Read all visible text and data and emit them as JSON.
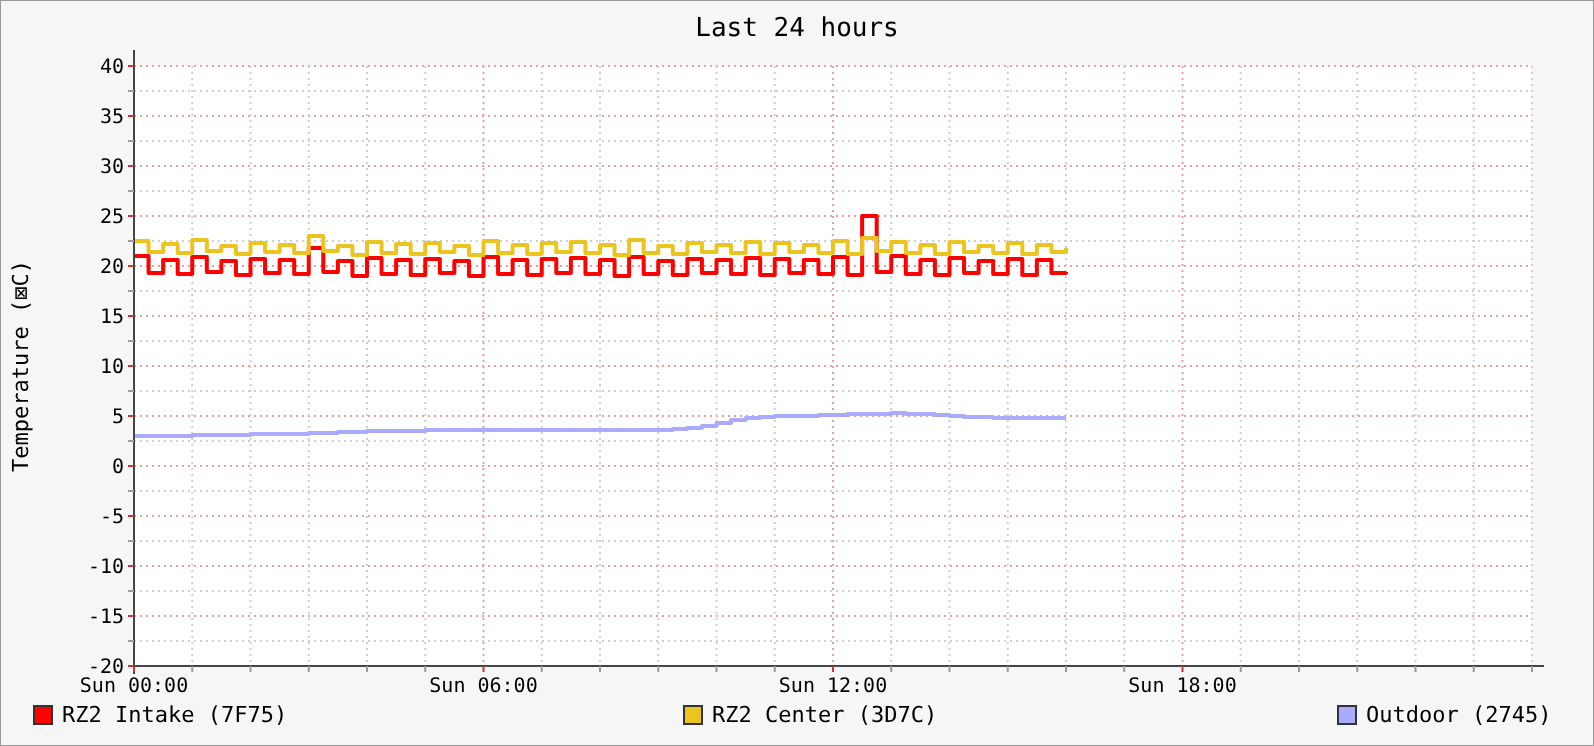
{
  "chart_data": {
    "type": "step",
    "title": "Last 24 hours",
    "ylabel": "Temperature (⊠C)",
    "categories": [
      "Sun 00:00",
      null,
      null,
      null,
      null,
      null,
      null,
      null,
      null,
      null,
      null,
      null,
      null,
      null,
      null,
      null,
      null,
      null,
      null,
      null,
      null,
      null,
      null,
      null,
      "Sun 06:00",
      null,
      null,
      null,
      null,
      null,
      null,
      null,
      null,
      null,
      null,
      null,
      null,
      null,
      null,
      null,
      null,
      null,
      null,
      null,
      null,
      null,
      null,
      null,
      "Sun 12:00",
      null,
      null,
      null,
      null,
      null,
      null,
      null,
      null,
      null,
      null,
      null,
      null,
      null,
      null,
      null,
      null,
      null,
      null,
      null,
      null,
      null,
      null,
      null,
      "Sun 18:00",
      null,
      null,
      null,
      null,
      null,
      null,
      null,
      null,
      null,
      null,
      null,
      null,
      null,
      null,
      null,
      null,
      null,
      null,
      null,
      null,
      null,
      null,
      null,
      null
    ],
    "series": [
      {
        "name": "RZ2 Intake (7F75)",
        "color": "#ff0000",
        "values": [
          21.0,
          19.3,
          20.6,
          19.2,
          20.9,
          19.4,
          20.5,
          19.1,
          20.7,
          19.3,
          20.6,
          19.2,
          21.8,
          19.4,
          20.5,
          19.0,
          20.8,
          19.2,
          20.6,
          19.1,
          20.7,
          19.3,
          20.5,
          19.0,
          20.9,
          19.2,
          20.6,
          19.1,
          20.7,
          19.3,
          20.8,
          19.2,
          20.6,
          19.0,
          20.9,
          19.2,
          20.5,
          19.1,
          20.7,
          19.3,
          20.6,
          19.2,
          20.8,
          19.1,
          20.7,
          19.3,
          20.6,
          19.2,
          20.9,
          19.1,
          25.0,
          19.4,
          21.0,
          19.2,
          20.6,
          19.1,
          20.8,
          19.3,
          20.5,
          19.2,
          20.7,
          19.1,
          20.6,
          19.3,
          19.4,
          null,
          null,
          null,
          null,
          null,
          null,
          null,
          null,
          null,
          null,
          null,
          null,
          null,
          null,
          null,
          null,
          null,
          null,
          null,
          null,
          null,
          null,
          null,
          null,
          null,
          null,
          null,
          null,
          null,
          null,
          null,
          null
        ]
      },
      {
        "name": "RZ2 Center (3D7C)",
        "color": "#ecc41f",
        "values": [
          22.5,
          21.4,
          22.2,
          21.3,
          22.6,
          21.5,
          22.0,
          21.2,
          22.3,
          21.4,
          22.1,
          21.3,
          23.0,
          21.5,
          22.0,
          21.1,
          22.4,
          21.3,
          22.2,
          21.2,
          22.3,
          21.4,
          22.0,
          21.1,
          22.5,
          21.3,
          22.1,
          21.2,
          22.3,
          21.4,
          22.4,
          21.3,
          22.1,
          21.1,
          22.6,
          21.3,
          22.0,
          21.2,
          22.3,
          21.4,
          22.1,
          21.3,
          22.4,
          21.2,
          22.3,
          21.4,
          22.1,
          21.3,
          22.5,
          21.2,
          22.8,
          21.5,
          22.4,
          21.3,
          22.1,
          21.2,
          22.4,
          21.4,
          22.0,
          21.3,
          22.3,
          21.2,
          22.1,
          21.4,
          21.8,
          null,
          null,
          null,
          null,
          null,
          null,
          null,
          null,
          null,
          null,
          null,
          null,
          null,
          null,
          null,
          null,
          null,
          null,
          null,
          null,
          null,
          null,
          null,
          null,
          null,
          null,
          null,
          null,
          null,
          null,
          null,
          null
        ]
      },
      {
        "name": "Outdoor (2745)",
        "color": "#aaaaff",
        "values": [
          3.0,
          3.0,
          3.0,
          3.0,
          3.1,
          3.1,
          3.1,
          3.1,
          3.2,
          3.2,
          3.2,
          3.2,
          3.3,
          3.3,
          3.4,
          3.4,
          3.5,
          3.5,
          3.5,
          3.5,
          3.6,
          3.6,
          3.6,
          3.6,
          3.6,
          3.6,
          3.6,
          3.6,
          3.6,
          3.6,
          3.6,
          3.6,
          3.6,
          3.6,
          3.6,
          3.6,
          3.6,
          3.7,
          3.8,
          4.0,
          4.3,
          4.6,
          4.8,
          4.9,
          5.0,
          5.0,
          5.0,
          5.1,
          5.1,
          5.2,
          5.2,
          5.2,
          5.3,
          5.2,
          5.2,
          5.1,
          5.0,
          4.9,
          4.9,
          4.8,
          4.8,
          4.8,
          4.8,
          4.8,
          4.8,
          null,
          null,
          null,
          null,
          null,
          null,
          null,
          null,
          null,
          null,
          null,
          null,
          null,
          null,
          null,
          null,
          null,
          null,
          null,
          null,
          null,
          null,
          null,
          null,
          null,
          null,
          null,
          null,
          null,
          null,
          null,
          null
        ]
      }
    ],
    "ylim": [
      -20,
      40
    ],
    "yticks": [
      -20,
      {
        "value": -17.5,
        "label": null
      },
      -15,
      {
        "value": -12.5,
        "label": null
      },
      -10,
      {
        "value": -7.5,
        "label": null
      },
      -5,
      {
        "value": -2.5,
        "label": null
      },
      0,
      {
        "value": 2.5,
        "label": null
      },
      5,
      {
        "value": 7.5,
        "label": null
      },
      10,
      {
        "value": 12.5,
        "label": null
      },
      15,
      {
        "value": 17.5,
        "label": null
      },
      20,
      {
        "value": 22.5,
        "label": null
      },
      25,
      {
        "value": 27.5,
        "label": null
      },
      30,
      {
        "value": 32.5,
        "label": null
      },
      35,
      {
        "value": 37.5,
        "label": null
      },
      40
    ],
    "grid": true,
    "legend": "bottom",
    "line_style": "solid",
    "marker": "none"
  }
}
